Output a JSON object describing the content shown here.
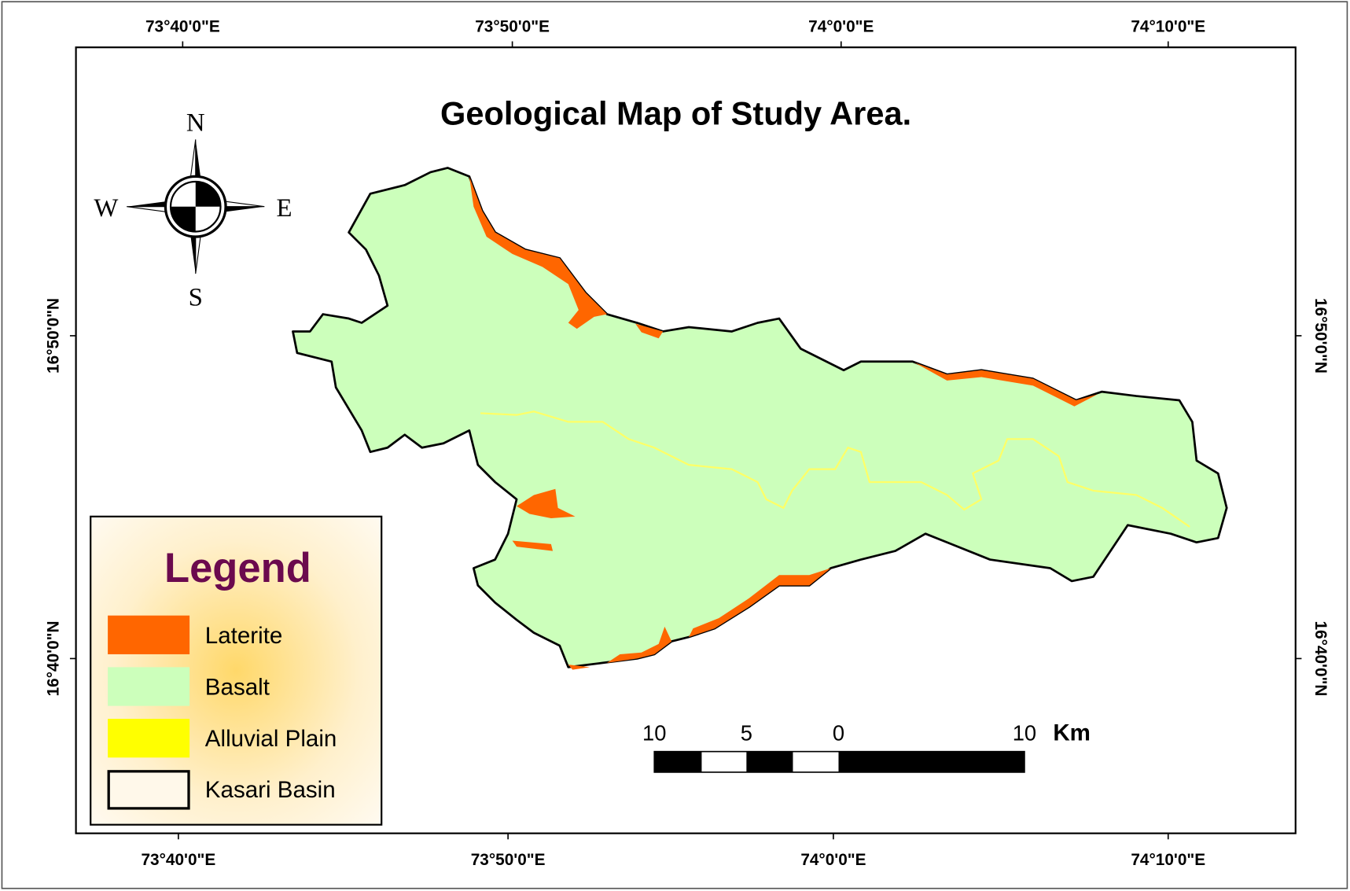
{
  "title": "Geological Map of Study Area.",
  "compass": {
    "north": "N",
    "south": "S",
    "east": "E",
    "west": "W"
  },
  "graticule": {
    "top": [
      "73°40'0\"E",
      "73°50'0\"E",
      "74°0'0\"E",
      "74°10'0\"E"
    ],
    "bottom": [
      "73°40'0\"E",
      "73°50'0\"E",
      "74°0'0\"E",
      "74°10'0\"E"
    ],
    "left": [
      "16°50'0\"N",
      "16°40'0\"N"
    ],
    "right": [
      "16°50'0\"N",
      "16°40'0\"N"
    ]
  },
  "legend": {
    "title": "Legend",
    "items": [
      {
        "label": "Laterite"
      },
      {
        "label": "Basalt"
      },
      {
        "label": "Alluvial Plain"
      },
      {
        "label": "Kasari Basin"
      }
    ]
  },
  "scale_bar": {
    "labels": [
      10,
      5,
      0,
      10
    ],
    "unit": "Km"
  }
}
